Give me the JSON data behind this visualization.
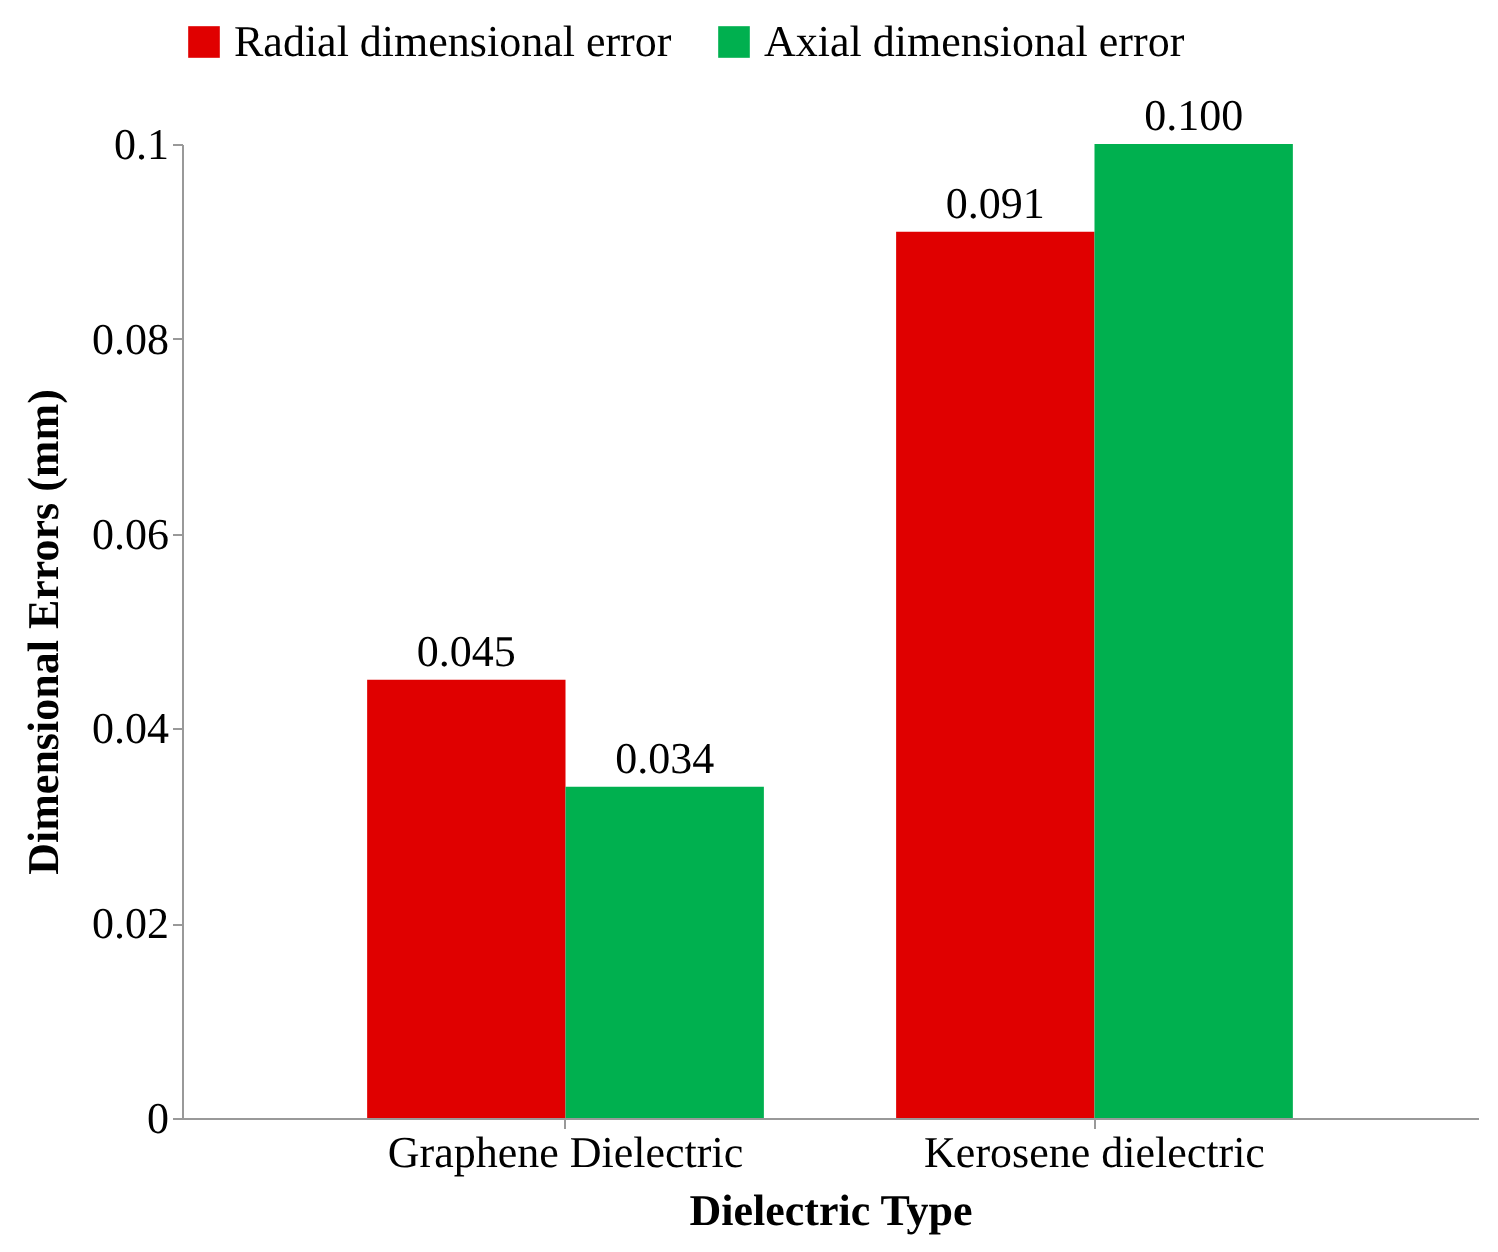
{
  "chart_data": {
    "type": "bar",
    "xlabel": "Dielectric Type",
    "ylabel": "Dimensional Errors (mm)",
    "categories": [
      "Graphene Dielectric",
      "Kerosene dielectric"
    ],
    "series": [
      {
        "name": "Radial dimensional error",
        "color": "#e00000",
        "values": [
          0.045,
          0.091
        ],
        "value_labels": [
          "0.045",
          "0.091"
        ]
      },
      {
        "name": "Axial dimensional error",
        "color": "#00b04f",
        "values": [
          0.034,
          0.1
        ],
        "value_labels": [
          "0.034",
          "0.100"
        ]
      }
    ],
    "ylim": [
      0,
      0.1
    ],
    "yticks": [
      0,
      0.02,
      0.04,
      0.06,
      0.08,
      0.1
    ],
    "grid": false,
    "legend": "top"
  }
}
